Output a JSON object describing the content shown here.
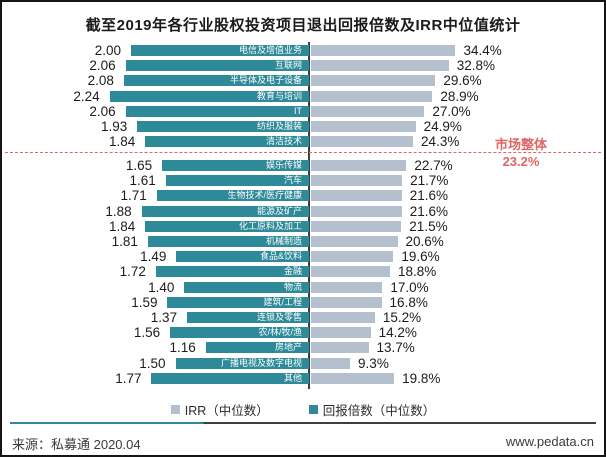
{
  "title": "截至2019年各行业股权投资项目退出回报倍数及IRR中位值统计",
  "chart_data": {
    "type": "bar",
    "orientation": "horizontal diverging from center axis",
    "title": "截至2019年各行业股权投资项目退出回报倍数及IRR中位值统计",
    "categories": [
      "电信及增值业务",
      "互联网",
      "半导体及电子设备",
      "教育与培训",
      "IT",
      "纺织及服装",
      "清洁技术",
      "娱乐传媒",
      "汽车",
      "生物技术/医疗健康",
      "能源及矿产",
      "化工原料及加工",
      "机械制造",
      "食品&饮料",
      "金融",
      "物流",
      "建筑/工程",
      "连锁及零售",
      "农/林/牧/渔",
      "房地产",
      "广播电视及数字电视",
      "其他"
    ],
    "series": [
      {
        "name": "回报倍数（中位数）",
        "side": "left",
        "color": "#2e8a99",
        "values": [
          2.0,
          2.06,
          2.08,
          2.24,
          2.06,
          1.93,
          1.84,
          1.65,
          1.61,
          1.71,
          1.88,
          1.84,
          1.81,
          1.49,
          1.72,
          1.4,
          1.59,
          1.37,
          1.56,
          1.16,
          1.5,
          1.77
        ]
      },
      {
        "name": "IRR（中位数）",
        "side": "right",
        "color": "#b4c0cd",
        "unit": "%",
        "values": [
          34.4,
          32.8,
          29.6,
          28.9,
          27.0,
          24.9,
          24.3,
          22.7,
          21.7,
          21.6,
          21.6,
          21.5,
          20.6,
          19.6,
          18.8,
          17.0,
          16.8,
          15.2,
          14.2,
          13.7,
          9.3,
          19.8
        ]
      }
    ],
    "annotations": {
      "market_overall_label": "市场整体",
      "market_overall_value": "23.2%",
      "market_line_color": "#e06666",
      "market_line_position": "after category 清洁技术 (IRR 23.2% level)"
    },
    "legend_position": "bottom",
    "grid": false
  },
  "legend": {
    "irr_label": "IRR（中位数）",
    "multiple_label": "回报倍数（中位数）"
  },
  "footer": {
    "source": "来源：私募通 2020.04",
    "site": "www.pedata.cn"
  },
  "colors": {
    "multiple_bar": "#2e8a99",
    "irr_bar": "#b4c0cd",
    "market_line": "#e06666",
    "axis": "#3d3d3d"
  }
}
